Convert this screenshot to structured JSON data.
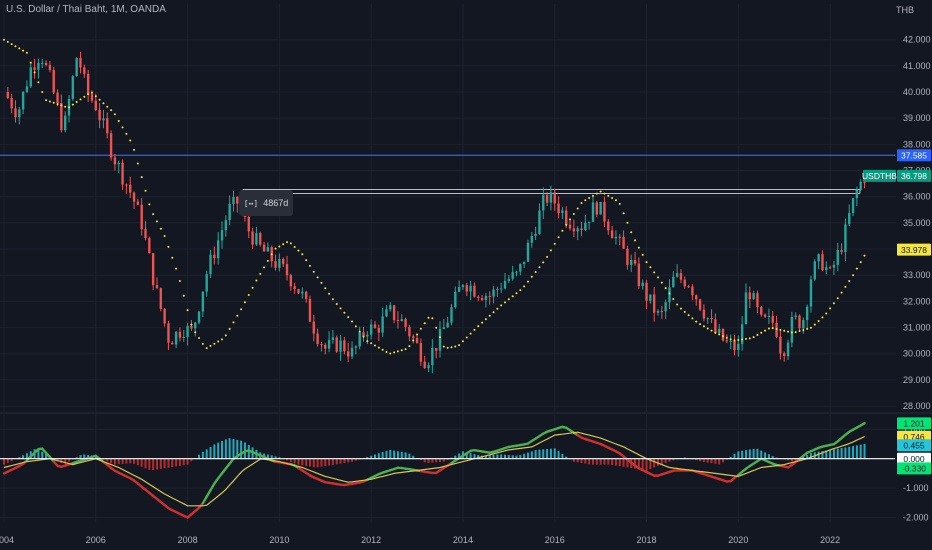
{
  "header": {
    "title": "U.S. Dollar / Thai Baht, 1M, OANDA",
    "currency": "THB"
  },
  "measure_tool": {
    "icon": "range-measure-icon",
    "label": "4867d"
  },
  "colors": {
    "bull": "#26a69a",
    "bear": "#ef5350",
    "sar": "#f5e642",
    "hline": "#2962ff",
    "range": "#f5a3b5",
    "macd": "#4caf50",
    "signal": "#d7c84a",
    "hist_pos": "#26c6da",
    "hist_neg": "#d32f2f"
  },
  "chart_data": [
    {
      "type": "candlestick",
      "title": "U.S. Dollar / Thai Baht, 1M, OANDA",
      "ylabel": "THB",
      "x_ticks": [
        "2004",
        "2006",
        "2008",
        "2010",
        "2012",
        "2014",
        "2016",
        "2018",
        "2020",
        "2022"
      ],
      "y_ticks": [
        "28.000",
        "29.000",
        "30.000",
        "31.000",
        "32.000",
        "33.000",
        "34.000",
        "35.000",
        "36.000",
        "37.000",
        "38.000",
        "39.000",
        "40.000",
        "41.000",
        "42.000"
      ],
      "xlim": [
        2004.0,
        2023.0
      ],
      "ylim": [
        27.85,
        42.6
      ],
      "price_path": [
        [
          2004.0,
          40.0
        ],
        [
          2004.3,
          39.2
        ],
        [
          2004.6,
          41.0
        ],
        [
          2004.8,
          41.5
        ],
        [
          2005.0,
          40.5
        ],
        [
          2005.3,
          38.5
        ],
        [
          2005.6,
          41.5
        ],
        [
          2005.8,
          40.0
        ],
        [
          2006.0,
          39.5
        ],
        [
          2006.4,
          37.5
        ],
        [
          2006.8,
          36.0
        ],
        [
          2007.0,
          35.0
        ],
        [
          2007.3,
          32.5
        ],
        [
          2007.6,
          30.5
        ],
        [
          2007.9,
          31.0
        ],
        [
          2008.1,
          30.8
        ],
        [
          2008.4,
          33.0
        ],
        [
          2008.7,
          34.5
        ],
        [
          2008.9,
          35.5
        ],
        [
          2009.1,
          35.8
        ],
        [
          2009.3,
          34.8
        ],
        [
          2009.6,
          34.0
        ],
        [
          2009.9,
          33.5
        ],
        [
          2010.2,
          33.0
        ],
        [
          2010.5,
          32.2
        ],
        [
          2010.8,
          30.8
        ],
        [
          2011.0,
          30.2
        ],
        [
          2011.3,
          30.4
        ],
        [
          2011.6,
          30.0
        ],
        [
          2011.9,
          31.0
        ],
        [
          2012.1,
          30.9
        ],
        [
          2012.4,
          31.6
        ],
        [
          2012.7,
          31.2
        ],
        [
          2012.9,
          30.6
        ],
        [
          2013.2,
          29.7
        ],
        [
          2013.5,
          30.6
        ],
        [
          2013.8,
          31.9
        ],
        [
          2014.0,
          32.8
        ],
        [
          2014.3,
          32.4
        ],
        [
          2014.6,
          32.2
        ],
        [
          2014.9,
          32.8
        ],
        [
          2015.2,
          33.0
        ],
        [
          2015.5,
          34.5
        ],
        [
          2015.8,
          36.0
        ],
        [
          2016.0,
          35.8
        ],
        [
          2016.3,
          35.1
        ],
        [
          2016.6,
          34.9
        ],
        [
          2016.9,
          35.7
        ],
        [
          2017.1,
          35.2
        ],
        [
          2017.4,
          34.2
        ],
        [
          2017.7,
          33.3
        ],
        [
          2018.0,
          32.2
        ],
        [
          2018.3,
          31.3
        ],
        [
          2018.6,
          32.9
        ],
        [
          2018.9,
          32.8
        ],
        [
          2019.2,
          31.8
        ],
        [
          2019.5,
          30.8
        ],
        [
          2019.8,
          30.3
        ],
        [
          2020.0,
          30.2
        ],
        [
          2020.2,
          32.6
        ],
        [
          2020.5,
          31.2
        ],
        [
          2020.8,
          31.2
        ],
        [
          2020.95,
          30.0
        ],
        [
          2021.2,
          31.3
        ],
        [
          2021.4,
          31.2
        ],
        [
          2021.6,
          33.1
        ],
        [
          2021.8,
          33.6
        ],
        [
          2022.0,
          33.0
        ],
        [
          2022.3,
          34.4
        ],
        [
          2022.45,
          35.5
        ],
        [
          2022.6,
          36.3
        ],
        [
          2022.75,
          36.8
        ]
      ],
      "parabolic_sar": [
        [
          2004.0,
          42.0
        ],
        [
          2004.5,
          41.5
        ],
        [
          2004.9,
          39.7
        ],
        [
          2005.4,
          39.4
        ],
        [
          2005.9,
          40.0
        ],
        [
          2006.4,
          39.2
        ],
        [
          2006.8,
          38.0
        ],
        [
          2007.2,
          35.5
        ],
        [
          2007.5,
          34.5
        ],
        [
          2007.8,
          33.0
        ],
        [
          2008.1,
          31.0
        ],
        [
          2008.4,
          30.2
        ],
        [
          2008.8,
          30.6
        ],
        [
          2009.2,
          31.8
        ],
        [
          2009.5,
          32.8
        ],
        [
          2009.9,
          34.0
        ],
        [
          2010.2,
          34.3
        ],
        [
          2010.5,
          33.8
        ],
        [
          2010.8,
          33.0
        ],
        [
          2011.2,
          32.0
        ],
        [
          2011.6,
          31.2
        ],
        [
          2011.9,
          30.5
        ],
        [
          2012.4,
          30.0
        ],
        [
          2012.8,
          30.2
        ],
        [
          2013.1,
          31.0
        ],
        [
          2013.3,
          31.5
        ],
        [
          2013.6,
          30.2
        ],
        [
          2013.9,
          30.3
        ],
        [
          2014.3,
          31.0
        ],
        [
          2014.8,
          31.8
        ],
        [
          2015.3,
          32.5
        ],
        [
          2015.8,
          33.6
        ],
        [
          2016.2,
          34.8
        ],
        [
          2016.6,
          35.8
        ],
        [
          2017.0,
          36.2
        ],
        [
          2017.4,
          35.8
        ],
        [
          2017.7,
          34.5
        ],
        [
          2018.0,
          33.5
        ],
        [
          2018.3,
          32.8
        ],
        [
          2018.7,
          31.8
        ],
        [
          2019.1,
          31.2
        ],
        [
          2019.5,
          30.8
        ],
        [
          2019.9,
          30.5
        ],
        [
          2020.3,
          30.6
        ],
        [
          2020.7,
          31.0
        ],
        [
          2021.2,
          30.8
        ],
        [
          2021.6,
          31.0
        ],
        [
          2021.9,
          31.5
        ],
        [
          2022.2,
          32.2
        ],
        [
          2022.5,
          33.0
        ],
        [
          2022.8,
          33.9
        ]
      ],
      "horizontal_line": 37.585,
      "measured_range": {
        "from": 2009.2,
        "to": 2022.65,
        "level": 36.2
      },
      "last_price": {
        "label": "USDTHB",
        "value": "36.798"
      },
      "axis_labels": [
        {
          "value": "37.585",
          "bg": "#2962ff",
          "fg": "#ffffff"
        },
        {
          "value": "33.978",
          "bg": "#f5e642",
          "fg": "#131722"
        }
      ]
    },
    {
      "type": "line+bar",
      "title": "",
      "y_ticks": [
        "-2.000",
        "-1.000",
        "0.000",
        "1.000"
      ],
      "ylim": [
        -2.15,
        1.45
      ],
      "macd": [
        [
          2004.0,
          -0.5
        ],
        [
          2004.4,
          -0.2
        ],
        [
          2004.8,
          0.4
        ],
        [
          2005.2,
          -0.3
        ],
        [
          2005.6,
          -0.1
        ],
        [
          2006.0,
          0.1
        ],
        [
          2006.4,
          -0.4
        ],
        [
          2006.8,
          -0.7
        ],
        [
          2007.2,
          -1.2
        ],
        [
          2007.6,
          -1.7
        ],
        [
          2008.0,
          -2.0
        ],
        [
          2008.3,
          -1.6
        ],
        [
          2008.6,
          -0.8
        ],
        [
          2009.0,
          0.0
        ],
        [
          2009.3,
          0.3
        ],
        [
          2009.6,
          0.1
        ],
        [
          2009.9,
          -0.1
        ],
        [
          2010.3,
          -0.2
        ],
        [
          2010.7,
          -0.6
        ],
        [
          2011.0,
          -0.8
        ],
        [
          2011.4,
          -0.9
        ],
        [
          2011.8,
          -0.8
        ],
        [
          2012.2,
          -0.5
        ],
        [
          2012.6,
          -0.3
        ],
        [
          2013.0,
          -0.4
        ],
        [
          2013.4,
          -0.5
        ],
        [
          2013.8,
          -0.1
        ],
        [
          2014.2,
          0.3
        ],
        [
          2014.6,
          0.2
        ],
        [
          2015.0,
          0.4
        ],
        [
          2015.4,
          0.5
        ],
        [
          2015.8,
          0.9
        ],
        [
          2016.2,
          1.1
        ],
        [
          2016.6,
          0.7
        ],
        [
          2017.0,
          0.5
        ],
        [
          2017.4,
          0.2
        ],
        [
          2017.8,
          -0.3
        ],
        [
          2018.2,
          -0.6
        ],
        [
          2018.6,
          -0.4
        ],
        [
          2019.0,
          -0.4
        ],
        [
          2019.4,
          -0.6
        ],
        [
          2019.8,
          -0.8
        ],
        [
          2020.2,
          -0.3
        ],
        [
          2020.5,
          0.0
        ],
        [
          2020.8,
          -0.2
        ],
        [
          2021.1,
          -0.3
        ],
        [
          2021.5,
          0.2
        ],
        [
          2021.8,
          0.4
        ],
        [
          2022.1,
          0.5
        ],
        [
          2022.4,
          0.9
        ],
        [
          2022.75,
          1.2
        ]
      ],
      "signal": [
        [
          2004.0,
          -0.3
        ],
        [
          2004.5,
          -0.1
        ],
        [
          2005.0,
          0.0
        ],
        [
          2005.5,
          -0.2
        ],
        [
          2006.0,
          0.0
        ],
        [
          2006.5,
          -0.3
        ],
        [
          2007.0,
          -0.7
        ],
        [
          2007.5,
          -1.2
        ],
        [
          2008.0,
          -1.6
        ],
        [
          2008.4,
          -1.6
        ],
        [
          2008.8,
          -1.1
        ],
        [
          2009.2,
          -0.4
        ],
        [
          2009.6,
          0.0
        ],
        [
          2010.0,
          -0.1
        ],
        [
          2010.5,
          -0.3
        ],
        [
          2011.0,
          -0.6
        ],
        [
          2011.5,
          -0.8
        ],
        [
          2012.0,
          -0.7
        ],
        [
          2012.5,
          -0.5
        ],
        [
          2013.0,
          -0.4
        ],
        [
          2013.5,
          -0.3
        ],
        [
          2014.0,
          -0.1
        ],
        [
          2014.5,
          0.1
        ],
        [
          2015.0,
          0.3
        ],
        [
          2015.5,
          0.4
        ],
        [
          2016.0,
          0.8
        ],
        [
          2016.5,
          0.9
        ],
        [
          2017.0,
          0.7
        ],
        [
          2017.5,
          0.4
        ],
        [
          2018.0,
          0.0
        ],
        [
          2018.5,
          -0.3
        ],
        [
          2019.0,
          -0.4
        ],
        [
          2019.5,
          -0.5
        ],
        [
          2020.0,
          -0.6
        ],
        [
          2020.5,
          -0.3
        ],
        [
          2021.0,
          -0.2
        ],
        [
          2021.5,
          0.0
        ],
        [
          2022.0,
          0.3
        ],
        [
          2022.4,
          0.5
        ],
        [
          2022.75,
          0.75
        ]
      ],
      "histogram": [
        [
          2004.0,
          -0.2
        ],
        [
          2004.4,
          0.1
        ],
        [
          2004.7,
          0.35
        ],
        [
          2005.0,
          0.1
        ],
        [
          2005.3,
          -0.2
        ],
        [
          2005.7,
          0.15
        ],
        [
          2006.0,
          0.1
        ],
        [
          2006.4,
          -0.2
        ],
        [
          2006.8,
          -0.15
        ],
        [
          2007.2,
          -0.4
        ],
        [
          2007.6,
          -0.3
        ],
        [
          2008.0,
          -0.2
        ],
        [
          2008.3,
          0.2
        ],
        [
          2008.6,
          0.5
        ],
        [
          2008.9,
          0.7
        ],
        [
          2009.2,
          0.6
        ],
        [
          2009.6,
          0.2
        ],
        [
          2010.0,
          0.05
        ],
        [
          2010.4,
          -0.2
        ],
        [
          2010.8,
          -0.3
        ],
        [
          2011.2,
          -0.2
        ],
        [
          2011.6,
          -0.1
        ],
        [
          2012.0,
          0.1
        ],
        [
          2012.4,
          0.3
        ],
        [
          2012.8,
          0.2
        ],
        [
          2013.2,
          -0.15
        ],
        [
          2013.6,
          -0.1
        ],
        [
          2014.0,
          0.25
        ],
        [
          2014.4,
          0.1
        ],
        [
          2014.8,
          0.15
        ],
        [
          2015.2,
          0.1
        ],
        [
          2015.6,
          0.3
        ],
        [
          2016.0,
          0.35
        ],
        [
          2016.4,
          -0.1
        ],
        [
          2016.8,
          -0.2
        ],
        [
          2017.2,
          -0.2
        ],
        [
          2017.6,
          -0.3
        ],
        [
          2018.0,
          -0.4
        ],
        [
          2018.4,
          -0.15
        ],
        [
          2018.8,
          0.05
        ],
        [
          2019.2,
          -0.1
        ],
        [
          2019.6,
          -0.2
        ],
        [
          2020.0,
          0.25
        ],
        [
          2020.4,
          0.35
        ],
        [
          2020.8,
          0.05
        ],
        [
          2021.2,
          -0.1
        ],
        [
          2021.6,
          0.2
        ],
        [
          2022.0,
          0.3
        ],
        [
          2022.4,
          0.4
        ],
        [
          2022.75,
          0.5
        ]
      ],
      "axis_labels": [
        {
          "value": "1.201",
          "bg": "#00e676",
          "fg": "#131722"
        },
        {
          "value": "0.746",
          "bg": "#f5e642",
          "fg": "#131722"
        },
        {
          "value": "0.455",
          "bg": "#26c6da",
          "fg": "#131722"
        },
        {
          "value": "0.000",
          "bg": "#ffffff",
          "fg": "#131722"
        },
        {
          "value": "-0.330",
          "bg": "#00e676",
          "fg": "#131722"
        }
      ]
    }
  ]
}
